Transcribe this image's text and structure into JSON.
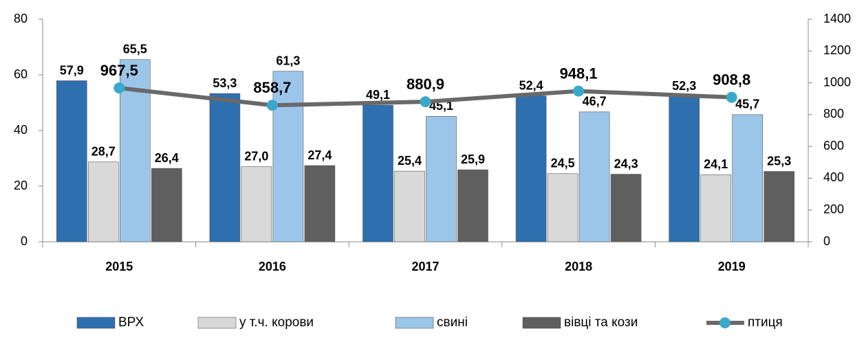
{
  "chart_data": {
    "type": "bar",
    "categories": [
      "2015",
      "2016",
      "2017",
      "2018",
      "2019"
    ],
    "series": [
      {
        "name": "ВРХ",
        "color": "#2e6fb0",
        "values": [
          57.9,
          53.3,
          49.1,
          52.4,
          52.3
        ],
        "value_labels": [
          "57,9",
          "53,3",
          "49,1",
          "52,4",
          "52,3"
        ]
      },
      {
        "name": "у т.ч. корови",
        "color": "#d9d9d9",
        "values": [
          28.7,
          27.0,
          25.4,
          24.5,
          24.1
        ],
        "value_labels": [
          "28,7",
          "27,0",
          "25,4",
          "24,5",
          "24,1"
        ]
      },
      {
        "name": "свині",
        "color": "#9cc5ea",
        "values": [
          65.5,
          61.3,
          45.1,
          46.7,
          45.7
        ],
        "value_labels": [
          "65,5",
          "61,3",
          "45,1",
          "46,7",
          "45,7"
        ]
      },
      {
        "name": "вівці та кози",
        "color": "#5f5f5f",
        "values": [
          26.4,
          27.4,
          25.9,
          24.3,
          25.3
        ],
        "value_labels": [
          "26,4",
          "27,4",
          "25,9",
          "24,3",
          "25,3"
        ]
      },
      {
        "name": "птиця",
        "type": "line",
        "axis": "y2",
        "color": "#696969",
        "marker_color": "#3aa9c9",
        "values": [
          967.5,
          858.7,
          880.9,
          948.1,
          908.8
        ],
        "value_labels": [
          "967,5",
          "858,7",
          "880,9",
          "948,1",
          "908,8"
        ]
      }
    ],
    "ylim": [
      0,
      80
    ],
    "yticks": [
      0,
      20,
      40,
      60,
      80
    ],
    "y2lim": [
      0,
      1400
    ],
    "y2ticks": [
      0,
      200,
      400,
      600,
      800,
      1000,
      1200,
      1400
    ],
    "legend": "bottom"
  }
}
